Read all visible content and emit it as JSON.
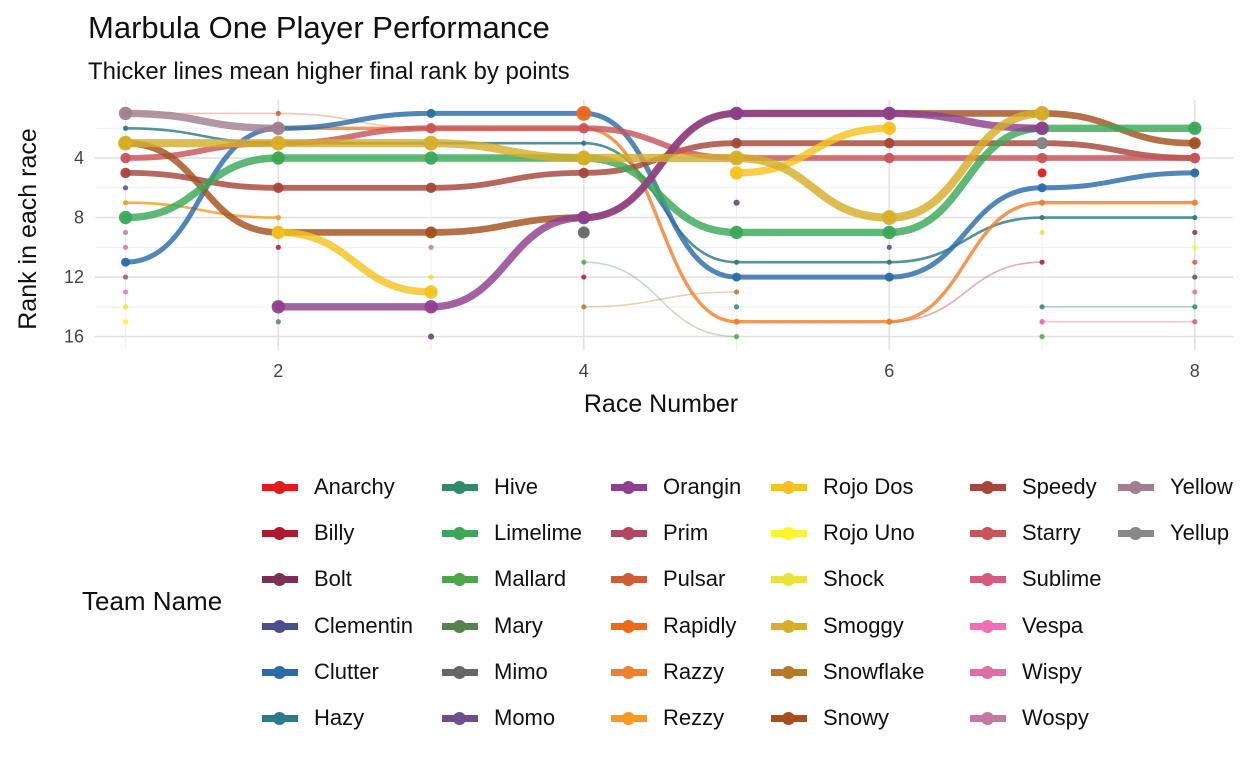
{
  "chart_data": {
    "type": "line",
    "title": "Marbula One Player Performance",
    "subtitle": "Thicker lines mean higher final rank by points",
    "xlabel": "Race Number",
    "ylabel": "Rank in each race",
    "x": [
      1,
      2,
      3,
      4,
      5,
      6,
      7,
      8
    ],
    "xlim": [
      0.8,
      8.25
    ],
    "xticks": [
      "2",
      "4",
      "6",
      "8"
    ],
    "ylim": [
      0.1,
      16.9
    ],
    "y_reversed": true,
    "yticks": [
      "4",
      "8",
      "12",
      "16"
    ],
    "grid": true,
    "legend_position": "bottom",
    "legend_title": "Team Name",
    "series": [
      {
        "name": "Anarchy",
        "color": "#e41a1c",
        "values": [
          null,
          null,
          null,
          null,
          null,
          null,
          5,
          null
        ]
      },
      {
        "name": "Billy",
        "color": "#b2182b",
        "values": [
          null,
          10,
          null,
          12,
          null,
          15,
          11,
          null
        ]
      },
      {
        "name": "Bolt",
        "color": "#7b3155",
        "values": [
          null,
          null,
          null,
          null,
          null,
          9,
          null,
          9
        ]
      },
      {
        "name": "Clementin",
        "color": "#4a4e8a",
        "values": [
          6,
          null,
          null,
          null,
          null,
          10,
          null,
          12
        ]
      },
      {
        "name": "Clutter",
        "color": "#2b6ca8",
        "values": [
          11,
          2,
          1,
          1,
          12,
          12,
          6,
          5
        ]
      },
      {
        "name": "Hazy",
        "color": "#2d7b86",
        "values": [
          2,
          3,
          3,
          3,
          11,
          11,
          8,
          8
        ]
      },
      {
        "name": "Hive",
        "color": "#2f8a6b",
        "values": [
          null,
          null,
          null,
          null,
          14,
          null,
          14,
          14
        ]
      },
      {
        "name": "Limelime",
        "color": "#3aa858",
        "values": [
          8,
          4,
          4,
          4,
          9,
          9,
          2,
          2
        ]
      },
      {
        "name": "Mallard",
        "color": "#4ca64a",
        "values": [
          null,
          null,
          null,
          11,
          16,
          null,
          16,
          null
        ]
      },
      {
        "name": "Mary",
        "color": "#53824f",
        "values": [
          null,
          15,
          null,
          null,
          null,
          null,
          null,
          null
        ]
      },
      {
        "name": "Mimo",
        "color": "#666666",
        "values": [
          null,
          null,
          null,
          9,
          null,
          null,
          3,
          null
        ]
      },
      {
        "name": "Momo",
        "color": "#6f4e8c",
        "values": [
          null,
          null,
          16,
          null,
          7,
          null,
          null,
          null
        ]
      },
      {
        "name": "Orangin",
        "color": "#8e3f8d",
        "values": [
          null,
          14,
          14,
          8,
          1,
          1,
          2,
          null
        ]
      },
      {
        "name": "Prim",
        "color": "#b0485f",
        "values": [
          12,
          null,
          null,
          null,
          null,
          null,
          null,
          null
        ]
      },
      {
        "name": "Pulsar",
        "color": "#d05c36",
        "values": [
          1,
          1,
          2,
          null,
          null,
          8,
          null,
          11
        ]
      },
      {
        "name": "Rapidly",
        "color": "#ee6a18",
        "values": [
          null,
          null,
          null,
          1,
          null,
          null,
          null,
          null
        ]
      },
      {
        "name": "Razzy",
        "color": "#f0802c",
        "values": [
          null,
          2,
          2,
          2,
          15,
          15,
          7,
          7
        ]
      },
      {
        "name": "Rezzy",
        "color": "#fb9a1e",
        "values": [
          7,
          8,
          null,
          null,
          null,
          null,
          null,
          null
        ]
      },
      {
        "name": "Rojo Dos",
        "color": "#f7c21f",
        "values": [
          null,
          9,
          13,
          null,
          5,
          2,
          null,
          null
        ]
      },
      {
        "name": "Rojo Uno",
        "color": "#fff22e",
        "values": [
          15,
          null,
          null,
          null,
          null,
          null,
          null,
          10
        ]
      },
      {
        "name": "Shock",
        "color": "#ece03a",
        "values": [
          14,
          null,
          12,
          null,
          null,
          null,
          9,
          null
        ]
      },
      {
        "name": "Smoggy",
        "color": "#d6af28",
        "values": [
          3,
          3,
          3,
          4,
          4,
          8,
          1,
          null
        ]
      },
      {
        "name": "Snowflake",
        "color": "#b77a24",
        "values": [
          null,
          null,
          null,
          14,
          13,
          null,
          null,
          null
        ]
      },
      {
        "name": "Snowy",
        "color": "#a4501f",
        "values": [
          3,
          9,
          9,
          8,
          1,
          1,
          1,
          3
        ]
      },
      {
        "name": "Speedy",
        "color": "#a6473a",
        "values": [
          5,
          6,
          6,
          5,
          3,
          3,
          3,
          4
        ]
      },
      {
        "name": "Starry",
        "color": "#c8545a",
        "values": [
          4,
          3,
          2,
          2,
          4,
          4,
          4,
          4
        ]
      },
      {
        "name": "Sublime",
        "color": "#d65a80",
        "values": [
          null,
          null,
          null,
          null,
          null,
          null,
          15,
          15
        ]
      },
      {
        "name": "Vespa",
        "color": "#ee6fb4",
        "values": [
          13,
          null,
          null,
          null,
          null,
          null,
          15,
          null
        ]
      },
      {
        "name": "Wispy",
        "color": "#de6fa6",
        "values": [
          10,
          null,
          null,
          null,
          null,
          null,
          null,
          13
        ]
      },
      {
        "name": "Wospy",
        "color": "#c27aa0",
        "values": [
          9,
          null,
          10,
          null,
          null,
          null,
          null,
          null
        ]
      },
      {
        "name": "Yellow",
        "color": "#a27f90",
        "values": [
          1,
          2,
          null,
          null,
          null,
          null,
          null,
          null
        ]
      },
      {
        "name": "Yellup",
        "color": "#888888",
        "values": [
          null,
          null,
          null,
          null,
          null,
          null,
          3,
          null
        ]
      }
    ]
  }
}
